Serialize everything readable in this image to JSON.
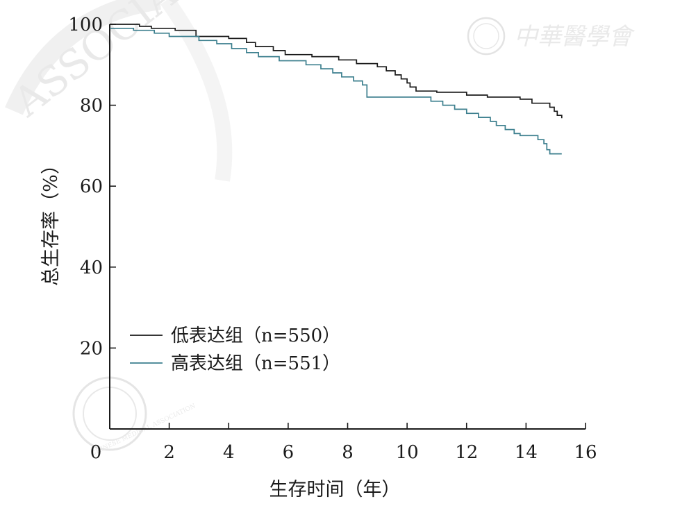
{
  "chart_data": {
    "type": "line",
    "xlabel": "生存时间（年）",
    "ylabel": "总生存率（%）",
    "xlim": [
      0,
      16
    ],
    "ylim": [
      0,
      100
    ],
    "x_ticks": [
      "0",
      "2",
      "4",
      "6",
      "8",
      "10",
      "12",
      "14",
      "16"
    ],
    "y_ticks": [
      "20",
      "40",
      "60",
      "80",
      "100"
    ],
    "y_tick_values": [
      20,
      40,
      60,
      80,
      100
    ],
    "x_tick_values": [
      0,
      2,
      4,
      6,
      8,
      10,
      12,
      14,
      16
    ],
    "grid": false,
    "legend_position": "bottom-left",
    "series": [
      {
        "name": "低表达组（n=550）",
        "color": "#1a1a1a",
        "step": true,
        "points": [
          [
            0,
            100
          ],
          [
            1.0,
            99.5
          ],
          [
            1.4,
            99
          ],
          [
            2.2,
            98.5
          ],
          [
            2.9,
            97
          ],
          [
            4.0,
            96.5
          ],
          [
            4.6,
            95.5
          ],
          [
            4.9,
            94.5
          ],
          [
            5.5,
            93.5
          ],
          [
            5.9,
            92.5
          ],
          [
            6.8,
            92
          ],
          [
            7.7,
            91.2
          ],
          [
            8.3,
            90.3
          ],
          [
            9.0,
            89.5
          ],
          [
            9.3,
            88.5
          ],
          [
            9.6,
            87.5
          ],
          [
            9.8,
            86.5
          ],
          [
            10.0,
            85.5
          ],
          [
            10.1,
            84.5
          ],
          [
            10.3,
            83.5
          ],
          [
            11.0,
            83.2
          ],
          [
            12.0,
            82.5
          ],
          [
            12.7,
            82
          ],
          [
            13.8,
            81.5
          ],
          [
            14.2,
            80.5
          ],
          [
            14.8,
            79.5
          ],
          [
            14.95,
            78.5
          ],
          [
            15.05,
            77.5
          ],
          [
            15.2,
            76.8
          ]
        ]
      },
      {
        "name": "高表达组（n=551）",
        "color": "#3c7f8e",
        "step": true,
        "points": [
          [
            0,
            99
          ],
          [
            0.8,
            98.5
          ],
          [
            1.5,
            97.8
          ],
          [
            2.0,
            97
          ],
          [
            3.0,
            96
          ],
          [
            3.6,
            95.2
          ],
          [
            4.1,
            94
          ],
          [
            4.6,
            93
          ],
          [
            5.0,
            92
          ],
          [
            5.7,
            91
          ],
          [
            6.6,
            90
          ],
          [
            7.1,
            89
          ],
          [
            7.5,
            88
          ],
          [
            7.8,
            87
          ],
          [
            8.2,
            86
          ],
          [
            8.5,
            85
          ],
          [
            8.65,
            82
          ],
          [
            10.0,
            82
          ],
          [
            10.8,
            81
          ],
          [
            11.2,
            80
          ],
          [
            11.6,
            79
          ],
          [
            12.0,
            78
          ],
          [
            12.4,
            77
          ],
          [
            12.8,
            76
          ],
          [
            13.0,
            75
          ],
          [
            13.3,
            74
          ],
          [
            13.6,
            73
          ],
          [
            13.8,
            72.5
          ],
          [
            14.4,
            71.5
          ],
          [
            14.6,
            70.5
          ],
          [
            14.7,
            69
          ],
          [
            14.8,
            68
          ],
          [
            15.2,
            68
          ]
        ]
      }
    ]
  },
  "watermark": {
    "society_text": "中華醫學會",
    "seal_text": "CHINESE MEDICAL ASSOCIATION",
    "arc_text": "ASSOCIA"
  }
}
